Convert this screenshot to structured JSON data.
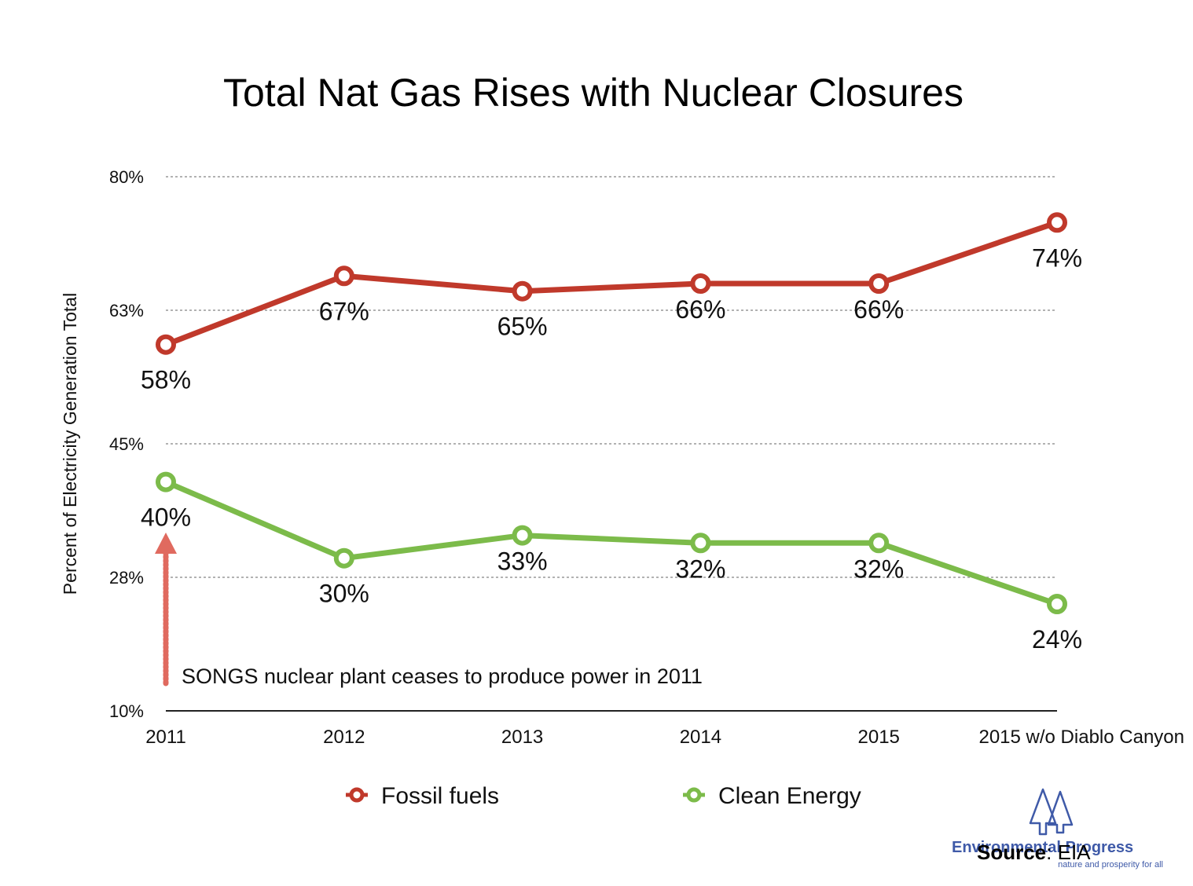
{
  "chart_data": {
    "type": "line",
    "title": "Total Nat Gas Rises with Nuclear Closures",
    "ylabel": "Percent of Electricity Generation Total",
    "xlabel": "",
    "categories": [
      "2011",
      "2012",
      "2013",
      "2014",
      "2015",
      "2015 w/o Diablo Canyon"
    ],
    "yticks": [
      "10%",
      "28%",
      "45%",
      "63%",
      "80%"
    ],
    "ylim": [
      10,
      80
    ],
    "grid": "horizontal dotted",
    "legend_position": "bottom",
    "series": [
      {
        "name": "Fossil fuels",
        "color": "#c0392b",
        "values": [
          58,
          67,
          65,
          66,
          66,
          74
        ],
        "labels": [
          "58%",
          "67%",
          "65%",
          "66%",
          "66%",
          "74%"
        ],
        "label_sides": [
          "below",
          "below",
          "below",
          "above",
          "above",
          "below"
        ]
      },
      {
        "name": "Clean Energy",
        "color": "#7cbb4a",
        "values": [
          40,
          30,
          33,
          32,
          32,
          24
        ],
        "labels": [
          "40%",
          "30%",
          "33%",
          "32%",
          "32%",
          "24%"
        ],
        "label_sides": [
          "below",
          "below",
          "above",
          "above",
          "above",
          "below"
        ]
      }
    ],
    "annotation": {
      "text": "SONGS nuclear plant ceases to produce power in 2011",
      "arrow_color": "#e06a5f"
    }
  },
  "logo": {
    "name": "Environmental Progress",
    "tagline": "nature and prosperity for all",
    "icon": "tree-icon",
    "color": "#3f5aa8"
  },
  "source": {
    "label": "Source",
    "text": ": EIA"
  }
}
